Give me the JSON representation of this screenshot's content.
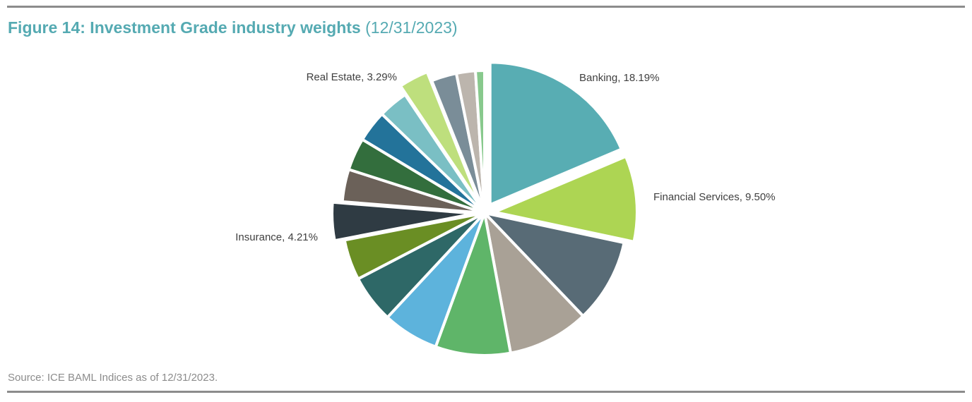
{
  "figure": {
    "title_bold": "Figure 14: Investment Grade industry weights",
    "title_date": "(12/31/2023)"
  },
  "source": "Source: ICE BAML Indices as of 12/31/2023.",
  "chart_data": {
    "type": "pie",
    "title": "Figure 14: Investment Grade industry weights (12/31/2023)",
    "slices": [
      {
        "label": "Banking",
        "value": 18.19,
        "display": "Banking, 18.19%",
        "color": "#58adb3",
        "labeled": true,
        "exploded": true
      },
      {
        "label": "Financial Services",
        "value": 9.5,
        "display": "Financial Services, 9.50%",
        "color": "#add553",
        "labeled": true,
        "exploded": true
      },
      {
        "label": "",
        "value": 9.3,
        "display": "",
        "color": "#586b76",
        "labeled": false,
        "exploded": false
      },
      {
        "label": "",
        "value": 9.0,
        "display": "",
        "color": "#a9a196",
        "labeled": false,
        "exploded": false
      },
      {
        "label": "",
        "value": 8.3,
        "display": "",
        "color": "#5fb569",
        "labeled": false,
        "exploded": false
      },
      {
        "label": "",
        "value": 6.2,
        "display": "",
        "color": "#5db3dc",
        "labeled": false,
        "exploded": false
      },
      {
        "label": "",
        "value": 5.3,
        "display": "",
        "color": "#2e6867",
        "labeled": false,
        "exploded": false
      },
      {
        "label": "",
        "value": 4.5,
        "display": "",
        "color": "#6a8e24",
        "labeled": false,
        "exploded": false
      },
      {
        "label": "Insurance",
        "value": 4.21,
        "display": "Insurance, 4.21%",
        "color": "#2f3b43",
        "labeled": true,
        "exploded": true
      },
      {
        "label": "",
        "value": 3.6,
        "display": "",
        "color": "#6b6159",
        "labeled": false,
        "exploded": false
      },
      {
        "label": "",
        "value": 3.6,
        "display": "",
        "color": "#336e3d",
        "labeled": false,
        "exploded": false
      },
      {
        "label": "",
        "value": 3.5,
        "display": "",
        "color": "#23739a",
        "labeled": false,
        "exploded": false
      },
      {
        "label": "",
        "value": 3.3,
        "display": "",
        "color": "#7abfc4",
        "labeled": false,
        "exploded": false
      },
      {
        "label": "Real Estate",
        "value": 3.29,
        "display": "Real Estate, 3.29%",
        "color": "#bedf7d",
        "labeled": true,
        "exploded": true
      },
      {
        "label": "",
        "value": 2.8,
        "display": "",
        "color": "#7a8d98",
        "labeled": false,
        "exploded": false
      },
      {
        "label": "",
        "value": 2.1,
        "display": "",
        "color": "#bcb5ad",
        "labeled": false,
        "exploded": false
      },
      {
        "label": "",
        "value": 1.0,
        "display": "",
        "color": "#88c98d",
        "labeled": false,
        "exploded": false
      }
    ],
    "legend": "none"
  }
}
